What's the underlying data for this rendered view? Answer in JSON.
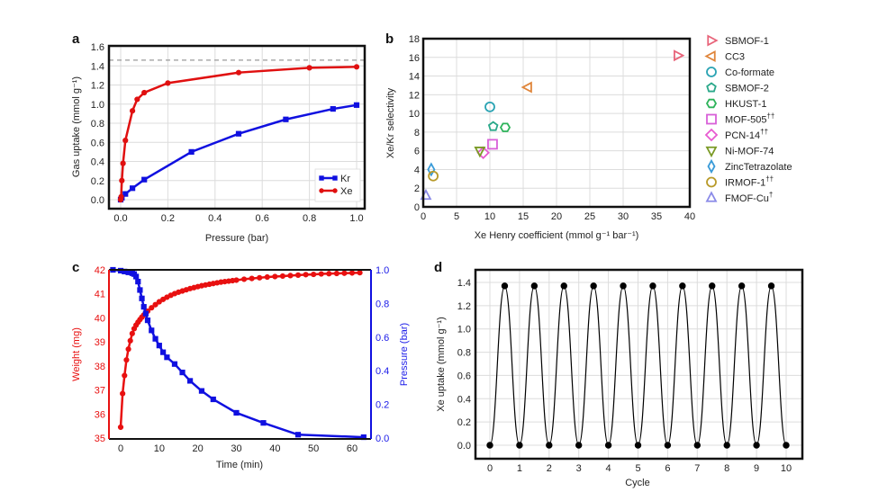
{
  "chart_data": [
    {
      "panel": "a",
      "type": "line",
      "xlabel": "Pressure (bar)",
      "ylabel": "Gas uptake (mmol g⁻¹)",
      "xlim": [
        -0.05,
        1.03
      ],
      "ylim": [
        -0.08,
        1.6
      ],
      "xticks": [
        "0.0",
        "0.2",
        "0.4",
        "0.6",
        "0.8",
        "1.0"
      ],
      "yticks": [
        "0.0",
        "0.2",
        "0.4",
        "0.6",
        "0.8",
        "1.0",
        "1.2",
        "1.4",
        "1.6"
      ],
      "grid": true,
      "reference_line": {
        "y": 1.46,
        "style": "dashed",
        "color": "#999999"
      },
      "legend": {
        "position": "bottom-right"
      },
      "series": [
        {
          "name": "Kr",
          "color": "#1010e0",
          "marker": "square",
          "x": [
            0.0,
            0.005,
            0.02,
            0.05,
            0.1,
            0.3,
            0.5,
            0.7,
            0.9,
            1.0
          ],
          "y": [
            0.0,
            0.02,
            0.06,
            0.12,
            0.21,
            0.5,
            0.69,
            0.84,
            0.95,
            0.99
          ]
        },
        {
          "name": "Xe",
          "color": "#e01010",
          "marker": "circle",
          "x": [
            0.0,
            0.002,
            0.005,
            0.01,
            0.02,
            0.05,
            0.07,
            0.1,
            0.2,
            0.5,
            0.8,
            1.0
          ],
          "y": [
            0.0,
            0.03,
            0.2,
            0.38,
            0.62,
            0.93,
            1.05,
            1.12,
            1.22,
            1.33,
            1.38,
            1.39
          ]
        }
      ]
    },
    {
      "panel": "b",
      "type": "scatter",
      "xlabel": "Xe Henry coefficient (mmol g⁻¹ bar⁻¹)",
      "ylabel": "Xe/Kr selectivity",
      "xlim": [
        0,
        40
      ],
      "ylim": [
        0,
        18
      ],
      "xticks": [
        "0",
        "5",
        "10",
        "15",
        "20",
        "25",
        "30",
        "35",
        "40"
      ],
      "yticks": [
        "0",
        "2",
        "4",
        "6",
        "8",
        "10",
        "12",
        "14",
        "16",
        "18"
      ],
      "grid": true,
      "legend": {
        "position": "outside-right"
      },
      "series": [
        {
          "name": "SBMOF-1",
          "sup": "",
          "color": "#e8647a",
          "marker": "triangle-right",
          "x": 38.2,
          "y": 16.2
        },
        {
          "name": "CC3",
          "sup": "",
          "color": "#e0853a",
          "marker": "triangle-left",
          "x": 15.7,
          "y": 12.8
        },
        {
          "name": "Co-formate",
          "sup": "",
          "color": "#2aa3b3",
          "marker": "circle",
          "x": 10.0,
          "y": 10.7
        },
        {
          "name": "SBMOF-2",
          "sup": "",
          "color": "#2aa88a",
          "marker": "pentagon",
          "x": 10.5,
          "y": 8.6
        },
        {
          "name": "HKUST-1",
          "sup": "",
          "color": "#2db35a",
          "marker": "hexagon",
          "x": 12.3,
          "y": 8.5
        },
        {
          "name": "MOF-505",
          "sup": "††",
          "color": "#d860d8",
          "marker": "square",
          "x": 10.4,
          "y": 6.7
        },
        {
          "name": "PCN-14",
          "sup": "††",
          "color": "#e85ad0",
          "marker": "diamond",
          "x": 9.0,
          "y": 5.8
        },
        {
          "name": "Ni-MOF-74",
          "sup": "",
          "color": "#7a9a25",
          "marker": "triangle-down",
          "x": 8.5,
          "y": 6.0
        },
        {
          "name": "ZincTetrazolate",
          "sup": "",
          "color": "#3a9bd8",
          "marker": "thin-diamond",
          "x": 1.2,
          "y": 4.0
        },
        {
          "name": "IRMOF-1",
          "sup": "††",
          "color": "#b89a2a",
          "marker": "circle",
          "x": 1.5,
          "y": 3.3
        },
        {
          "name": "FMOF-Cu",
          "sup": "†",
          "color": "#8a8ae8",
          "marker": "triangle-up",
          "x": 0.4,
          "y": 1.2
        }
      ]
    },
    {
      "panel": "c",
      "type": "line",
      "xlabel": "Time (min)",
      "ylabel_left": "Weight (mg)",
      "ylabel_right": "Pressure (bar)",
      "xlim": [
        -3,
        65
      ],
      "ylim_left": [
        35,
        42
      ],
      "ylim_right": [
        0,
        1.0
      ],
      "xticks": [
        "0",
        "10",
        "20",
        "30",
        "40",
        "50",
        "60"
      ],
      "yticks_left": [
        "35",
        "36",
        "37",
        "38",
        "39",
        "40",
        "41",
        "42"
      ],
      "yticks_right": [
        "0.0",
        "0.2",
        "0.4",
        "0.6",
        "0.8",
        "1.0"
      ],
      "grid": false,
      "series": [
        {
          "name": "Weight",
          "axis": "left",
          "color": "#e81010",
          "marker": "circle",
          "x": [
            0,
            0.5,
            1,
            1.5,
            2,
            2.5,
            3,
            3.5,
            4,
            4.5,
            5,
            5.5,
            6,
            7,
            8,
            9,
            10,
            11,
            12,
            13,
            14,
            15,
            16,
            17,
            18,
            19,
            20,
            21,
            22,
            23,
            24,
            25,
            26,
            27,
            28,
            29,
            30,
            32,
            34,
            36,
            38,
            40,
            42,
            44,
            46,
            48,
            50,
            52,
            54,
            56,
            58,
            60,
            62
          ],
          "y": [
            35.45,
            36.85,
            37.6,
            38.25,
            38.7,
            39.05,
            39.35,
            39.55,
            39.7,
            39.82,
            39.93,
            40.03,
            40.12,
            40.28,
            40.42,
            40.55,
            40.67,
            40.77,
            40.86,
            40.94,
            41.01,
            41.07,
            41.12,
            41.17,
            41.22,
            41.26,
            41.3,
            41.34,
            41.37,
            41.4,
            41.43,
            41.46,
            41.49,
            41.51,
            41.53,
            41.55,
            41.57,
            41.61,
            41.64,
            41.67,
            41.7,
            41.72,
            41.74,
            41.76,
            41.78,
            41.8,
            41.81,
            41.83,
            41.84,
            41.85,
            41.86,
            41.87,
            41.88
          ]
        },
        {
          "name": "Pressure",
          "axis": "right",
          "color": "#1010e0",
          "marker": "square",
          "x": [
            -2,
            0,
            1,
            2,
            3,
            3.5,
            4,
            4.5,
            5,
            5.5,
            6,
            6.5,
            7,
            8,
            9,
            10,
            11,
            12,
            14,
            16,
            18,
            21,
            24,
            30,
            37,
            46,
            63
          ],
          "y": [
            1.0,
            0.995,
            0.99,
            0.985,
            0.98,
            0.975,
            0.96,
            0.93,
            0.88,
            0.83,
            0.78,
            0.74,
            0.7,
            0.64,
            0.59,
            0.55,
            0.51,
            0.48,
            0.44,
            0.39,
            0.34,
            0.28,
            0.23,
            0.15,
            0.09,
            0.02,
            0.005
          ]
        }
      ]
    },
    {
      "panel": "d",
      "type": "line",
      "xlabel": "Cycle",
      "ylabel": "Xe uptake (mmol g⁻¹)",
      "xlim": [
        -0.5,
        10.5
      ],
      "ylim": [
        -0.1,
        1.5
      ],
      "xticks": [
        "0",
        "1",
        "2",
        "3",
        "4",
        "5",
        "6",
        "7",
        "8",
        "9",
        "10"
      ],
      "yticks": [
        "0.0",
        "0.2",
        "0.4",
        "0.6",
        "0.8",
        "1.0",
        "1.2",
        "1.4"
      ],
      "grid": true,
      "series": [
        {
          "name": "Xe uptake",
          "color": "#000000",
          "marker": "circle",
          "smooth": true,
          "x": [
            0,
            0.5,
            1,
            1.5,
            2,
            2.5,
            3,
            3.5,
            4,
            4.5,
            5,
            5.5,
            6,
            6.5,
            7,
            7.5,
            8,
            8.5,
            9,
            9.5,
            10
          ],
          "y": [
            0,
            1.37,
            0,
            1.37,
            0,
            1.37,
            0,
            1.37,
            0,
            1.37,
            0,
            1.37,
            0,
            1.37,
            0,
            1.37,
            0,
            1.37,
            0,
            1.37,
            0
          ]
        }
      ]
    }
  ],
  "panel_labels": [
    "a",
    "b",
    "c",
    "d"
  ]
}
